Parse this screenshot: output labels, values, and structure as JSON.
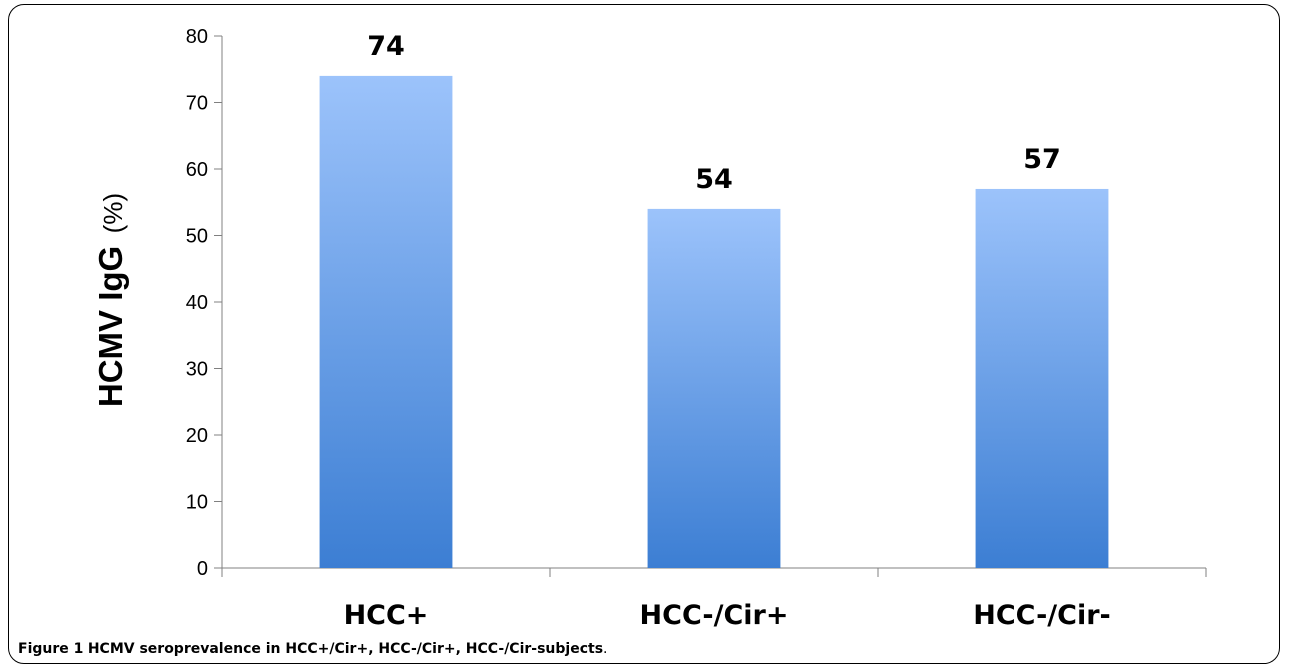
{
  "chart_data": {
    "type": "bar",
    "categories": [
      "HCC+",
      "HCC-/Cir+",
      "HCC-/Cir-"
    ],
    "values": [
      74,
      54,
      57
    ],
    "data_labels": [
      "74",
      "54",
      "57"
    ],
    "ylabel_main": "HCMV IgG",
    "ylabel_unit": "(%)",
    "xlabel": "",
    "ylim": [
      0,
      80
    ],
    "yticks": [
      0,
      10,
      20,
      30,
      40,
      50,
      60,
      70,
      80
    ],
    "grid": false,
    "legend": "none",
    "colors": {
      "bar_top": "#9CC3FB",
      "bar_bottom": "#3C7ED3",
      "axis": "#808080",
      "text": "#000000"
    }
  },
  "caption": {
    "label": "Figure 1",
    "text": "HCMV seroprevalence in HCC+/Cir+, HCC-/Cir+, HCC-/Cir-subjects",
    "end": "."
  }
}
